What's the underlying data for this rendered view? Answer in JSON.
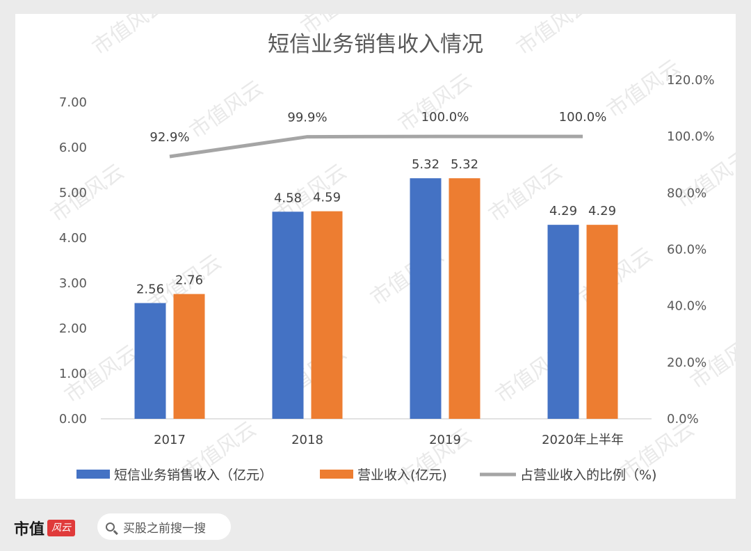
{
  "watermark": "市值风云",
  "footer": {
    "logo_text": "市值",
    "logo_seal": "风云",
    "search_text": "买股之前搜一搜"
  },
  "colors": {
    "series1": "#4472c4",
    "series2": "#ed7d31",
    "line": "#a5a5a5"
  },
  "chart_data": {
    "type": "bar",
    "title": "短信业务销售收入情况",
    "categories": [
      "2017",
      "2018",
      "2019",
      "2020年上半年"
    ],
    "series": [
      {
        "name": "短信业务销售收入（亿元）",
        "type": "bar",
        "axis": "left",
        "values": [
          2.56,
          4.58,
          5.32,
          4.29
        ],
        "labels": [
          "2.56",
          "4.58",
          "5.32",
          "4.29"
        ]
      },
      {
        "name": "营业收入(亿元)",
        "type": "bar",
        "axis": "left",
        "values": [
          2.76,
          4.59,
          5.32,
          4.29
        ],
        "labels": [
          "2.76",
          "4.59",
          "5.32",
          "4.29"
        ]
      },
      {
        "name": "占营业收入的比例（%)",
        "type": "line",
        "axis": "right",
        "values": [
          92.9,
          99.9,
          100.0,
          100.0
        ],
        "labels": [
          "92.9%",
          "99.9%",
          "100.0%",
          "100.0%"
        ]
      }
    ],
    "y_left": {
      "min": 0,
      "max": 7,
      "ticks": [
        "0.00",
        "1.00",
        "2.00",
        "3.00",
        "4.00",
        "5.00",
        "6.00",
        "7.00"
      ]
    },
    "y_right": {
      "min": 0,
      "max": 120,
      "ticks": [
        "0.0%",
        "20.0%",
        "40.0%",
        "60.0%",
        "80.0%",
        "100.0%",
        "120.0%"
      ]
    },
    "grid": false,
    "legend": "bottom"
  }
}
